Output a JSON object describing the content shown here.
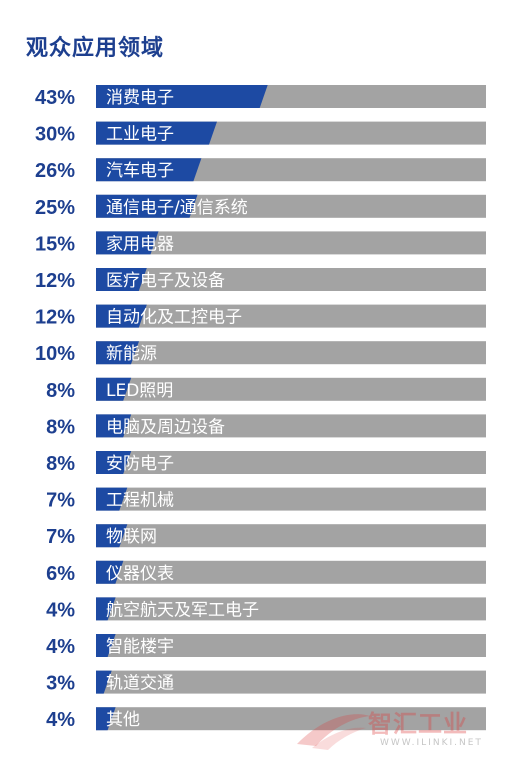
{
  "title": "观众应用领域",
  "chart_data": {
    "type": "bar",
    "orientation": "horizontal",
    "title": "观众应用领域",
    "xlim": [
      0,
      100
    ],
    "bar_color": "#1d4aa3",
    "track_color": "#a3a3a3",
    "label_color": "#1d3f8f",
    "categories": [
      "消费电子",
      "工业电子",
      "汽车电子",
      "通信电子/通信系统",
      "家用电器",
      "医疗电子及设备",
      "自动化及工控电子",
      "新能源",
      "LED照明",
      "电脑及周边设备",
      "安防电子",
      "工程机械",
      "物联网",
      "仪器仪表",
      "航空航天及军工电子",
      "智能楼宇",
      "轨道交通",
      "其他"
    ],
    "values": [
      43,
      30,
      26,
      25,
      15,
      12,
      12,
      10,
      8,
      8,
      8,
      7,
      7,
      6,
      4,
      4,
      3,
      4
    ],
    "value_labels": [
      "43%",
      "30%",
      "26%",
      "25%",
      "15%",
      "12%",
      "12%",
      "10%",
      "8%",
      "8%",
      "8%",
      "7%",
      "7%",
      "6%",
      "4%",
      "4%",
      "3%",
      "4%"
    ]
  },
  "watermark": {
    "brand": "智汇工业",
    "url": "WWW.ILINKI.NET"
  }
}
